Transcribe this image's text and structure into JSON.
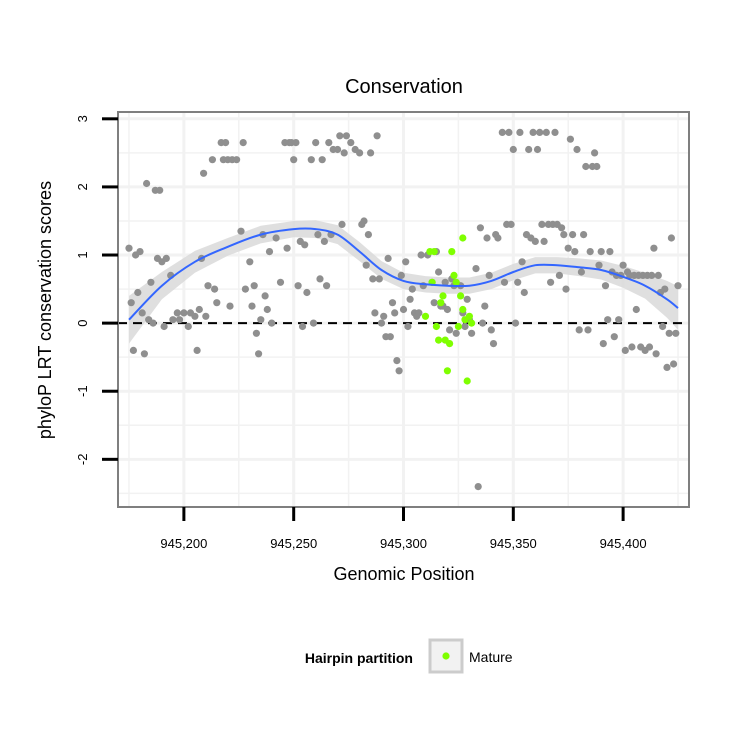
{
  "colors": {
    "point": "#8f8f8f",
    "highlight": "#7fff00",
    "smooth": "#3366ff",
    "band": "#d9d9d9",
    "grid": "#f2f2f2",
    "panel_border": "#7f7f7f",
    "legend_key_border": "#cccccc"
  },
  "chart_data": {
    "type": "scatter",
    "title": "Conservation",
    "xlabel": "Genomic Position",
    "ylabel": "phyloP LRT conservation scores",
    "xlim": [
      945170,
      945430
    ],
    "ylim": [
      -2.7,
      3.1
    ],
    "xticks": [
      945200,
      945250,
      945300,
      945350,
      945400
    ],
    "xtick_labels": [
      "945,200",
      "945,250",
      "945,300",
      "945,350",
      "945,400"
    ],
    "yticks": [
      -2,
      -1,
      0,
      1,
      2,
      3
    ],
    "ytick_labels": [
      "-2",
      "-1",
      "0",
      "1",
      "2",
      "3"
    ],
    "grid": true,
    "reference_line": {
      "y": 0,
      "style": "dashed"
    },
    "legend": {
      "title": "Hairpin partition",
      "placement": "bottom",
      "entries": [
        "Mature"
      ]
    },
    "series": [
      {
        "role": "other",
        "points": [
          [
            945175,
            1.1
          ],
          [
            945176,
            0.3
          ],
          [
            945177,
            -0.4
          ],
          [
            945178,
            1.0
          ],
          [
            945179,
            0.45
          ],
          [
            945180,
            1.05
          ],
          [
            945181,
            0.15
          ],
          [
            945182,
            -0.45
          ],
          [
            945183,
            2.05
          ],
          [
            945184,
            0.05
          ],
          [
            945185,
            0.6
          ],
          [
            945186,
            0.0
          ],
          [
            945187,
            1.95
          ],
          [
            945188,
            0.95
          ],
          [
            945189,
            1.95
          ],
          [
            945190,
            0.9
          ],
          [
            945191,
            -0.05
          ],
          [
            945192,
            0.95
          ],
          [
            945194,
            0.7
          ],
          [
            945195,
            0.05
          ],
          [
            945197,
            0.15
          ],
          [
            945198,
            0.05
          ],
          [
            945200,
            0.15
          ],
          [
            945202,
            -0.05
          ],
          [
            945203,
            0.15
          ],
          [
            945205,
            0.1
          ],
          [
            945206,
            -0.4
          ],
          [
            945207,
            0.2
          ],
          [
            945208,
            0.95
          ],
          [
            945209,
            2.2
          ],
          [
            945210,
            0.1
          ],
          [
            945211,
            0.55
          ],
          [
            945213,
            2.4
          ],
          [
            945214,
            0.5
          ],
          [
            945215,
            0.3
          ],
          [
            945217,
            2.65
          ],
          [
            945218,
            2.4
          ],
          [
            945219,
            2.65
          ],
          [
            945220,
            2.4
          ],
          [
            945221,
            0.25
          ],
          [
            945222,
            2.4
          ],
          [
            945224,
            2.4
          ],
          [
            945226,
            1.35
          ],
          [
            945227,
            2.65
          ],
          [
            945228,
            0.5
          ],
          [
            945230,
            0.9
          ],
          [
            945231,
            0.25
          ],
          [
            945232,
            0.55
          ],
          [
            945233,
            -0.15
          ],
          [
            945234,
            -0.45
          ],
          [
            945235,
            0.05
          ],
          [
            945236,
            1.3
          ],
          [
            945237,
            0.4
          ],
          [
            945238,
            0.2
          ],
          [
            945239,
            1.05
          ],
          [
            945240,
            0.0
          ],
          [
            945242,
            1.25
          ],
          [
            945244,
            0.6
          ],
          [
            945246,
            2.65
          ],
          [
            945247,
            1.1
          ],
          [
            945248,
            2.65
          ],
          [
            945249,
            2.65
          ],
          [
            945250,
            2.4
          ],
          [
            945251,
            2.65
          ],
          [
            945252,
            0.55
          ],
          [
            945253,
            1.2
          ],
          [
            945254,
            -0.05
          ],
          [
            945255,
            1.15
          ],
          [
            945256,
            0.45
          ],
          [
            945258,
            2.4
          ],
          [
            945259,
            0.0
          ],
          [
            945260,
            2.65
          ],
          [
            945261,
            1.3
          ],
          [
            945262,
            0.65
          ],
          [
            945263,
            2.4
          ],
          [
            945264,
            1.2
          ],
          [
            945265,
            0.55
          ],
          [
            945266,
            2.65
          ],
          [
            945267,
            1.3
          ],
          [
            945268,
            2.55
          ],
          [
            945270,
            2.55
          ],
          [
            945271,
            2.75
          ],
          [
            945272,
            1.45
          ],
          [
            945273,
            2.5
          ],
          [
            945274,
            2.75
          ],
          [
            945276,
            2.65
          ],
          [
            945278,
            2.55
          ],
          [
            945280,
            2.5
          ],
          [
            945281,
            1.45
          ],
          [
            945282,
            1.5
          ],
          [
            945283,
            0.85
          ],
          [
            945284,
            1.3
          ],
          [
            945285,
            2.5
          ],
          [
            945286,
            0.65
          ],
          [
            945287,
            0.15
          ],
          [
            945288,
            2.75
          ],
          [
            945289,
            0.65
          ],
          [
            945290,
            0.0
          ],
          [
            945291,
            0.1
          ],
          [
            945292,
            -0.2
          ],
          [
            945293,
            0.95
          ],
          [
            945294,
            -0.2
          ],
          [
            945295,
            0.3
          ],
          [
            945296,
            0.15
          ],
          [
            945297,
            -0.55
          ],
          [
            945298,
            -0.7
          ],
          [
            945299,
            0.7
          ],
          [
            945300,
            0.2
          ],
          [
            945301,
            0.9
          ],
          [
            945302,
            -0.05
          ],
          [
            945303,
            0.35
          ],
          [
            945304,
            0.5
          ],
          [
            945305,
            0.15
          ],
          [
            945306,
            0.1
          ],
          [
            945307,
            0.15
          ],
          [
            945308,
            1.0
          ],
          [
            945309,
            0.55
          ],
          [
            945311,
            1.0
          ],
          [
            945313,
            0.6
          ],
          [
            945314,
            0.3
          ],
          [
            945315,
            1.05
          ],
          [
            945316,
            0.75
          ],
          [
            945317,
            0.25
          ],
          [
            945318,
            0.25
          ],
          [
            945319,
            0.6
          ],
          [
            945320,
            0.2
          ],
          [
            945321,
            -0.1
          ],
          [
            945322,
            0.65
          ],
          [
            945323,
            0.55
          ],
          [
            945324,
            -0.15
          ],
          [
            945326,
            0.55
          ],
          [
            945327,
            0.15
          ],
          [
            945328,
            -0.05
          ],
          [
            945329,
            0.35
          ],
          [
            945330,
            0.05
          ],
          [
            945331,
            -0.15
          ],
          [
            945333,
            0.8
          ],
          [
            945334,
            -2.4
          ],
          [
            945335,
            1.4
          ],
          [
            945336,
            0.0
          ],
          [
            945337,
            0.25
          ],
          [
            945338,
            1.25
          ],
          [
            945339,
            0.7
          ],
          [
            945340,
            -0.1
          ],
          [
            945341,
            -0.3
          ],
          [
            945342,
            1.3
          ],
          [
            945343,
            1.25
          ],
          [
            945345,
            2.8
          ],
          [
            945346,
            0.6
          ],
          [
            945347,
            1.45
          ],
          [
            945348,
            2.8
          ],
          [
            945349,
            1.45
          ],
          [
            945350,
            2.55
          ],
          [
            945351,
            0.0
          ],
          [
            945352,
            0.6
          ],
          [
            945353,
            2.8
          ],
          [
            945354,
            0.9
          ],
          [
            945355,
            0.45
          ],
          [
            945356,
            1.3
          ],
          [
            945357,
            2.55
          ],
          [
            945358,
            1.25
          ],
          [
            945359,
            2.8
          ],
          [
            945360,
            1.2
          ],
          [
            945361,
            2.55
          ],
          [
            945362,
            2.8
          ],
          [
            945363,
            1.45
          ],
          [
            945364,
            1.2
          ],
          [
            945365,
            2.8
          ],
          [
            945366,
            1.45
          ],
          [
            945367,
            0.6
          ],
          [
            945368,
            1.45
          ],
          [
            945369,
            2.8
          ],
          [
            945370,
            1.45
          ],
          [
            945371,
            0.7
          ],
          [
            945372,
            1.4
          ],
          [
            945373,
            1.3
          ],
          [
            945374,
            0.5
          ],
          [
            945375,
            1.1
          ],
          [
            945376,
            2.7
          ],
          [
            945377,
            1.3
          ],
          [
            945378,
            1.05
          ],
          [
            945379,
            2.55
          ],
          [
            945380,
            -0.1
          ],
          [
            945381,
            0.75
          ],
          [
            945382,
            1.3
          ],
          [
            945383,
            2.3
          ],
          [
            945384,
            -0.1
          ],
          [
            945385,
            1.05
          ],
          [
            945386,
            2.3
          ],
          [
            945387,
            2.5
          ],
          [
            945388,
            2.3
          ],
          [
            945389,
            0.85
          ],
          [
            945390,
            1.05
          ],
          [
            945391,
            -0.3
          ],
          [
            945392,
            0.55
          ],
          [
            945393,
            0.05
          ],
          [
            945394,
            1.05
          ],
          [
            945395,
            0.75
          ],
          [
            945396,
            -0.2
          ],
          [
            945397,
            0.7
          ],
          [
            945398,
            0.05
          ],
          [
            945399,
            0.7
          ],
          [
            945400,
            0.85
          ],
          [
            945401,
            -0.4
          ],
          [
            945402,
            0.75
          ],
          [
            945403,
            0.7
          ],
          [
            945404,
            -0.35
          ],
          [
            945405,
            0.7
          ],
          [
            945406,
            0.2
          ],
          [
            945407,
            0.7
          ],
          [
            945408,
            -0.35
          ],
          [
            945409,
            0.7
          ],
          [
            945410,
            -0.4
          ],
          [
            945411,
            0.7
          ],
          [
            945412,
            -0.35
          ],
          [
            945413,
            0.7
          ],
          [
            945414,
            1.1
          ],
          [
            945415,
            -0.45
          ],
          [
            945416,
            0.7
          ],
          [
            945417,
            0.45
          ],
          [
            945418,
            -0.05
          ],
          [
            945419,
            0.5
          ],
          [
            945420,
            -0.65
          ],
          [
            945421,
            -0.15
          ],
          [
            945422,
            1.25
          ],
          [
            945423,
            -0.6
          ],
          [
            945424,
            -0.15
          ],
          [
            945425,
            0.55
          ]
        ]
      },
      {
        "name": "Mature",
        "role": "highlight",
        "points": [
          [
            945310,
            0.1
          ],
          [
            945312,
            1.05
          ],
          [
            945313,
            0.6
          ],
          [
            945314,
            1.05
          ],
          [
            945315,
            -0.05
          ],
          [
            945316,
            -0.25
          ],
          [
            945317,
            0.3
          ],
          [
            945318,
            0.4
          ],
          [
            945319,
            -0.25
          ],
          [
            945320,
            -0.7
          ],
          [
            945321,
            -0.3
          ],
          [
            945322,
            1.05
          ],
          [
            945323,
            0.7
          ],
          [
            945324,
            0.6
          ],
          [
            945325,
            -0.05
          ],
          [
            945326,
            0.4
          ],
          [
            945327,
            1.25
          ],
          [
            945327,
            0.2
          ],
          [
            945328,
            0.05
          ],
          [
            945329,
            -0.85
          ],
          [
            945330,
            0.1
          ],
          [
            945331,
            0.0
          ]
        ]
      }
    ],
    "smooth": {
      "x": [
        945175,
        945190,
        945205,
        945220,
        945235,
        945250,
        945260,
        945270,
        945280,
        945290,
        945300,
        945310,
        945320,
        945330,
        945340,
        945350,
        945360,
        945370,
        945380,
        945390,
        945400,
        945410,
        945420,
        945425
      ],
      "y": [
        0.05,
        0.55,
        0.9,
        1.12,
        1.3,
        1.38,
        1.38,
        1.3,
        1.05,
        0.78,
        0.62,
        0.57,
        0.55,
        0.55,
        0.62,
        0.75,
        0.85,
        0.85,
        0.82,
        0.78,
        0.68,
        0.55,
        0.35,
        0.22
      ],
      "lower": [
        -0.3,
        0.35,
        0.74,
        0.99,
        1.17,
        1.26,
        1.25,
        1.16,
        0.91,
        0.65,
        0.5,
        0.45,
        0.43,
        0.43,
        0.5,
        0.63,
        0.73,
        0.73,
        0.69,
        0.64,
        0.52,
        0.36,
        0.08,
        -0.1
      ],
      "upper": [
        0.4,
        0.75,
        1.06,
        1.25,
        1.43,
        1.5,
        1.51,
        1.44,
        1.19,
        0.91,
        0.74,
        0.69,
        0.67,
        0.67,
        0.74,
        0.87,
        0.97,
        0.97,
        0.95,
        0.92,
        0.84,
        0.74,
        0.62,
        0.54
      ]
    }
  }
}
